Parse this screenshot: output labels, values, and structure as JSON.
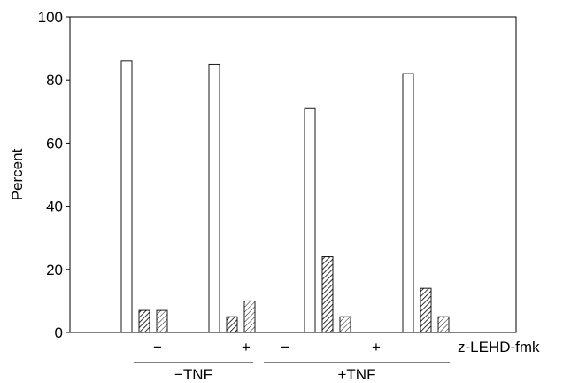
{
  "chart_data": {
    "type": "bar",
    "title": "",
    "xlabel": "",
    "ylabel": "Percent",
    "ylim": [
      0,
      100
    ],
    "yticks": [
      0,
      20,
      40,
      60,
      80,
      100
    ],
    "grid": false,
    "legend": "none",
    "categories": [
      "−",
      "+",
      "−",
      "+"
    ],
    "category_axis_label": "z-LEHD-fmk",
    "groups": [
      {
        "label": "−TNF",
        "categories": [
          0,
          1
        ]
      },
      {
        "label": "+TNF",
        "categories": [
          2,
          3
        ]
      }
    ],
    "series": [
      {
        "values": [
          86,
          85,
          71,
          82
        ],
        "fill": "open"
      },
      {
        "values": [
          7,
          5,
          24,
          14
        ],
        "fill": "dense-hatch"
      },
      {
        "values": [
          7,
          10,
          5,
          5
        ],
        "fill": "light-hatch"
      }
    ],
    "colors": {
      "stroke": "#000000",
      "background": "#ffffff"
    }
  }
}
